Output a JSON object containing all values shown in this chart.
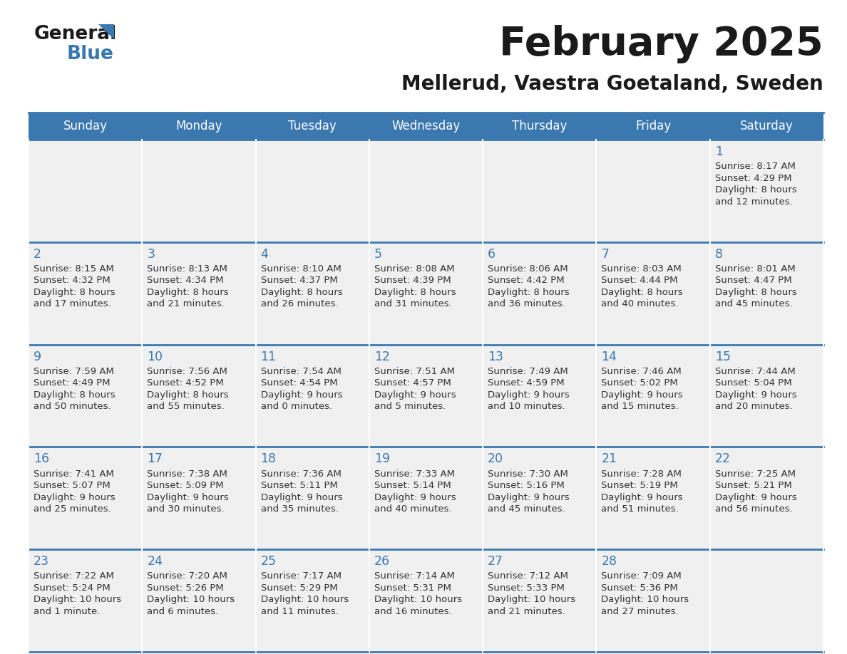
{
  "title": "February 2025",
  "subtitle": "Mellerud, Vaestra Goetaland, Sweden",
  "header_bg": "#3b78b0",
  "header_text_color": "#ffffff",
  "cell_bg": "#f0f0f0",
  "border_color": "#3b78b0",
  "day_headers": [
    "Sunday",
    "Monday",
    "Tuesday",
    "Wednesday",
    "Thursday",
    "Friday",
    "Saturday"
  ],
  "title_color": "#1a1a1a",
  "subtitle_color": "#1a1a1a",
  "day_number_color": "#3b78b0",
  "cell_text_color": "#333333",
  "days": [
    {
      "day": 1,
      "col": 6,
      "row": 0,
      "sunrise": "8:17 AM",
      "sunset": "4:29 PM",
      "daylight_line1": "Daylight: 8 hours",
      "daylight_line2": "and 12 minutes."
    },
    {
      "day": 2,
      "col": 0,
      "row": 1,
      "sunrise": "8:15 AM",
      "sunset": "4:32 PM",
      "daylight_line1": "Daylight: 8 hours",
      "daylight_line2": "and 17 minutes."
    },
    {
      "day": 3,
      "col": 1,
      "row": 1,
      "sunrise": "8:13 AM",
      "sunset": "4:34 PM",
      "daylight_line1": "Daylight: 8 hours",
      "daylight_line2": "and 21 minutes."
    },
    {
      "day": 4,
      "col": 2,
      "row": 1,
      "sunrise": "8:10 AM",
      "sunset": "4:37 PM",
      "daylight_line1": "Daylight: 8 hours",
      "daylight_line2": "and 26 minutes."
    },
    {
      "day": 5,
      "col": 3,
      "row": 1,
      "sunrise": "8:08 AM",
      "sunset": "4:39 PM",
      "daylight_line1": "Daylight: 8 hours",
      "daylight_line2": "and 31 minutes."
    },
    {
      "day": 6,
      "col": 4,
      "row": 1,
      "sunrise": "8:06 AM",
      "sunset": "4:42 PM",
      "daylight_line1": "Daylight: 8 hours",
      "daylight_line2": "and 36 minutes."
    },
    {
      "day": 7,
      "col": 5,
      "row": 1,
      "sunrise": "8:03 AM",
      "sunset": "4:44 PM",
      "daylight_line1": "Daylight: 8 hours",
      "daylight_line2": "and 40 minutes."
    },
    {
      "day": 8,
      "col": 6,
      "row": 1,
      "sunrise": "8:01 AM",
      "sunset": "4:47 PM",
      "daylight_line1": "Daylight: 8 hours",
      "daylight_line2": "and 45 minutes."
    },
    {
      "day": 9,
      "col": 0,
      "row": 2,
      "sunrise": "7:59 AM",
      "sunset": "4:49 PM",
      "daylight_line1": "Daylight: 8 hours",
      "daylight_line2": "and 50 minutes."
    },
    {
      "day": 10,
      "col": 1,
      "row": 2,
      "sunrise": "7:56 AM",
      "sunset": "4:52 PM",
      "daylight_line1": "Daylight: 8 hours",
      "daylight_line2": "and 55 minutes."
    },
    {
      "day": 11,
      "col": 2,
      "row": 2,
      "sunrise": "7:54 AM",
      "sunset": "4:54 PM",
      "daylight_line1": "Daylight: 9 hours",
      "daylight_line2": "and 0 minutes."
    },
    {
      "day": 12,
      "col": 3,
      "row": 2,
      "sunrise": "7:51 AM",
      "sunset": "4:57 PM",
      "daylight_line1": "Daylight: 9 hours",
      "daylight_line2": "and 5 minutes."
    },
    {
      "day": 13,
      "col": 4,
      "row": 2,
      "sunrise": "7:49 AM",
      "sunset": "4:59 PM",
      "daylight_line1": "Daylight: 9 hours",
      "daylight_line2": "and 10 minutes."
    },
    {
      "day": 14,
      "col": 5,
      "row": 2,
      "sunrise": "7:46 AM",
      "sunset": "5:02 PM",
      "daylight_line1": "Daylight: 9 hours",
      "daylight_line2": "and 15 minutes."
    },
    {
      "day": 15,
      "col": 6,
      "row": 2,
      "sunrise": "7:44 AM",
      "sunset": "5:04 PM",
      "daylight_line1": "Daylight: 9 hours",
      "daylight_line2": "and 20 minutes."
    },
    {
      "day": 16,
      "col": 0,
      "row": 3,
      "sunrise": "7:41 AM",
      "sunset": "5:07 PM",
      "daylight_line1": "Daylight: 9 hours",
      "daylight_line2": "and 25 minutes."
    },
    {
      "day": 17,
      "col": 1,
      "row": 3,
      "sunrise": "7:38 AM",
      "sunset": "5:09 PM",
      "daylight_line1": "Daylight: 9 hours",
      "daylight_line2": "and 30 minutes."
    },
    {
      "day": 18,
      "col": 2,
      "row": 3,
      "sunrise": "7:36 AM",
      "sunset": "5:11 PM",
      "daylight_line1": "Daylight: 9 hours",
      "daylight_line2": "and 35 minutes."
    },
    {
      "day": 19,
      "col": 3,
      "row": 3,
      "sunrise": "7:33 AM",
      "sunset": "5:14 PM",
      "daylight_line1": "Daylight: 9 hours",
      "daylight_line2": "and 40 minutes."
    },
    {
      "day": 20,
      "col": 4,
      "row": 3,
      "sunrise": "7:30 AM",
      "sunset": "5:16 PM",
      "daylight_line1": "Daylight: 9 hours",
      "daylight_line2": "and 45 minutes."
    },
    {
      "day": 21,
      "col": 5,
      "row": 3,
      "sunrise": "7:28 AM",
      "sunset": "5:19 PM",
      "daylight_line1": "Daylight: 9 hours",
      "daylight_line2": "and 51 minutes."
    },
    {
      "day": 22,
      "col": 6,
      "row": 3,
      "sunrise": "7:25 AM",
      "sunset": "5:21 PM",
      "daylight_line1": "Daylight: 9 hours",
      "daylight_line2": "and 56 minutes."
    },
    {
      "day": 23,
      "col": 0,
      "row": 4,
      "sunrise": "7:22 AM",
      "sunset": "5:24 PM",
      "daylight_line1": "Daylight: 10 hours",
      "daylight_line2": "and 1 minute."
    },
    {
      "day": 24,
      "col": 1,
      "row": 4,
      "sunrise": "7:20 AM",
      "sunset": "5:26 PM",
      "daylight_line1": "Daylight: 10 hours",
      "daylight_line2": "and 6 minutes."
    },
    {
      "day": 25,
      "col": 2,
      "row": 4,
      "sunrise": "7:17 AM",
      "sunset": "5:29 PM",
      "daylight_line1": "Daylight: 10 hours",
      "daylight_line2": "and 11 minutes."
    },
    {
      "day": 26,
      "col": 3,
      "row": 4,
      "sunrise": "7:14 AM",
      "sunset": "5:31 PM",
      "daylight_line1": "Daylight: 10 hours",
      "daylight_line2": "and 16 minutes."
    },
    {
      "day": 27,
      "col": 4,
      "row": 4,
      "sunrise": "7:12 AM",
      "sunset": "5:33 PM",
      "daylight_line1": "Daylight: 10 hours",
      "daylight_line2": "and 21 minutes."
    },
    {
      "day": 28,
      "col": 5,
      "row": 4,
      "sunrise": "7:09 AM",
      "sunset": "5:36 PM",
      "daylight_line1": "Daylight: 10 hours",
      "daylight_line2": "and 27 minutes."
    }
  ]
}
